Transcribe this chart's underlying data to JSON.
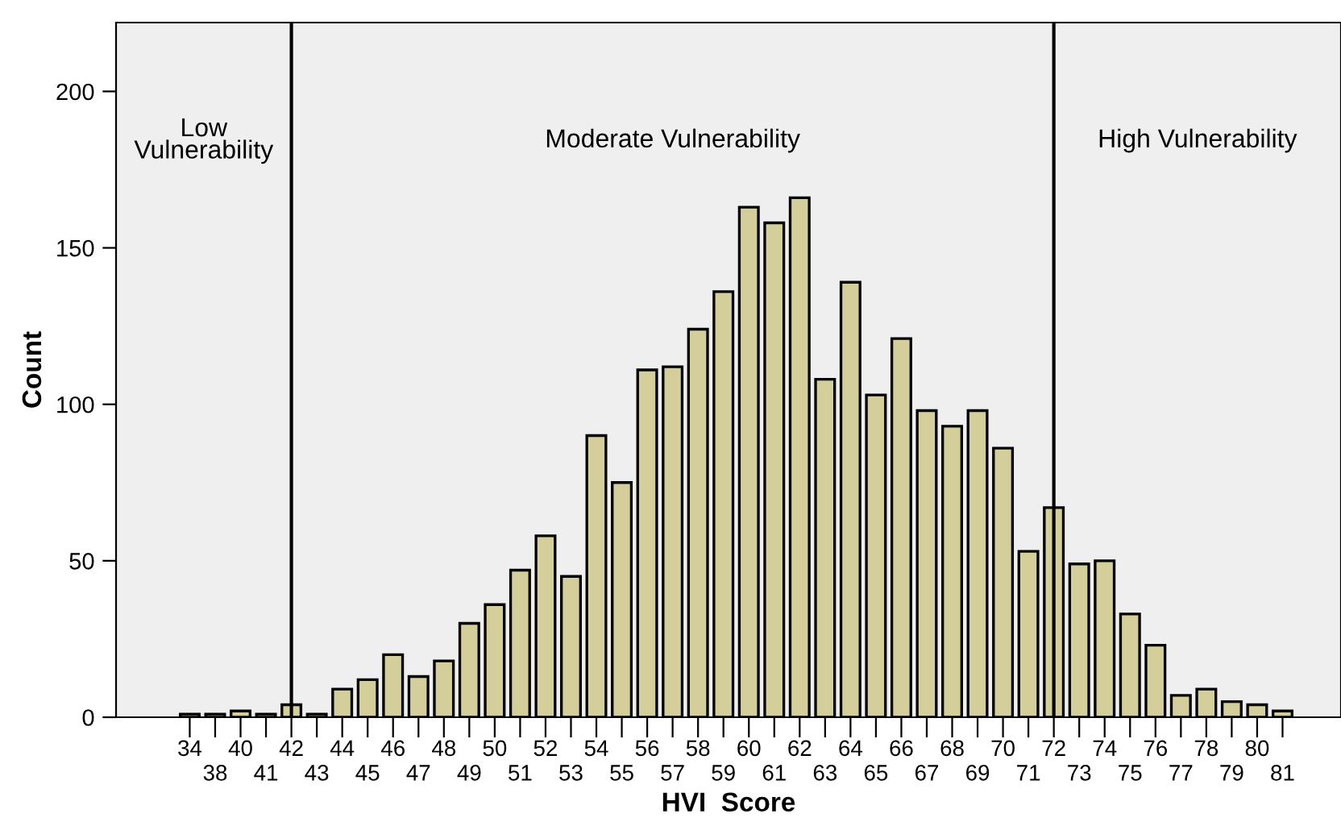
{
  "chart_data": {
    "type": "bar",
    "xlabel": "HVI  Score",
    "ylabel": "Count",
    "categories": [
      "34",
      "38",
      "40",
      "41",
      "42",
      "43",
      "44",
      "45",
      "46",
      "47",
      "48",
      "49",
      "50",
      "51",
      "52",
      "53",
      "54",
      "55",
      "56",
      "57",
      "58",
      "59",
      "60",
      "61",
      "62",
      "63",
      "64",
      "65",
      "66",
      "67",
      "68",
      "69",
      "70",
      "71",
      "72",
      "73",
      "74",
      "75",
      "76",
      "77",
      "78",
      "79",
      "80",
      "81"
    ],
    "values": [
      1,
      1,
      2,
      1,
      4,
      1,
      9,
      12,
      20,
      13,
      18,
      30,
      36,
      47,
      58,
      45,
      90,
      75,
      111,
      112,
      124,
      136,
      163,
      158,
      166,
      108,
      139,
      103,
      121,
      98,
      93,
      98,
      86,
      53,
      67,
      49,
      50,
      33,
      23,
      7,
      9,
      5,
      4,
      2
    ],
    "color": "#d4cf9a",
    "ylim": [
      0,
      222
    ],
    "yticks": [
      0,
      50,
      100,
      150,
      200
    ],
    "grid": false,
    "legend": false,
    "ref_lines": [
      {
        "axis": "x",
        "value": "42",
        "color": "#000000",
        "line_style": "solid"
      },
      {
        "axis": "x",
        "value": "72",
        "color": "#000000",
        "line_style": "solid"
      }
    ],
    "annotations": [
      "Low\nVulnerability",
      "Moderate Vulnerability",
      "High Vulnerability"
    ]
  }
}
